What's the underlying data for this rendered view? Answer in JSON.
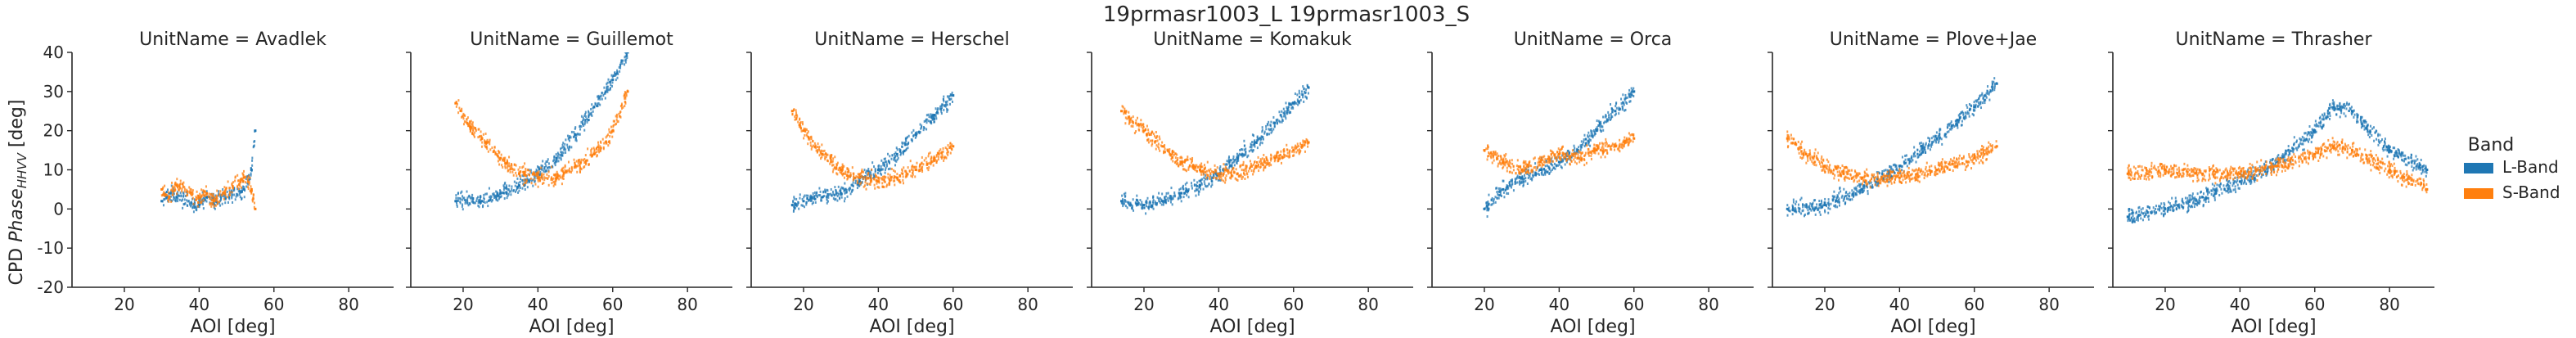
{
  "suptitle": "19prmasr1003_L 19prmasr1003_S",
  "legend": {
    "title": "Band",
    "entries": [
      {
        "label": "L-Band",
        "color": "#1f77b4"
      },
      {
        "label": "S-Band",
        "color": "#ff7f0e"
      }
    ]
  },
  "chart_data": {
    "type": "scatter",
    "title": "19prmasr1003_L 19prmasr1003_S",
    "xlabel": "AOI [deg]",
    "ylabel": "CPD Phase_HHVV [deg]",
    "xlim": [
      6,
      92
    ],
    "ylim": [
      -20,
      40
    ],
    "xticks": [
      20,
      40,
      60,
      80
    ],
    "yticks": [
      -20,
      -10,
      0,
      10,
      20,
      30,
      40
    ],
    "grid": false,
    "legend_position": "right",
    "series_names": [
      "L-Band",
      "S-Band"
    ],
    "panels": [
      {
        "title": "UnitName = Avadlek",
        "series": [
          {
            "name": "L-Band",
            "x": [
              30,
              32,
              34,
              40,
              42,
              44,
              52,
              54,
              55
            ],
            "y": [
              2,
              4,
              3,
              1,
              3,
              2,
              5,
              10,
              20
            ]
          },
          {
            "name": "S-Band",
            "x": [
              30,
              32,
              34,
              40,
              42,
              44,
              52,
              54,
              55
            ],
            "y": [
              5,
              3,
              6,
              3,
              4,
              2,
              8,
              5,
              0
            ]
          }
        ]
      },
      {
        "title": "UnitName = Guillemot",
        "series": [
          {
            "name": "L-Band",
            "x": [
              18,
              25,
              30,
              35,
              40,
              45,
              50,
              55,
              60,
              64
            ],
            "y": [
              2,
              2,
              4,
              6,
              9,
              13,
              19,
              26,
              33,
              40
            ]
          },
          {
            "name": "S-Band",
            "x": [
              18,
              22,
              26,
              30,
              35,
              40,
              45,
              50,
              55,
              60,
              64
            ],
            "y": [
              27,
              21,
              17,
              13,
              9,
              8,
              8,
              11,
              14,
              20,
              30
            ]
          }
        ]
      },
      {
        "title": "UnitName = Herschel",
        "series": [
          {
            "name": "L-Band",
            "x": [
              17,
              20,
              25,
              30,
              35,
              40,
              45,
              50,
              55,
              60
            ],
            "y": [
              1,
              2,
              3,
              4,
              7,
              10,
              14,
              19,
              24,
              29
            ]
          },
          {
            "name": "S-Band",
            "x": [
              17,
              20,
              25,
              30,
              35,
              40,
              45,
              50,
              55,
              60
            ],
            "y": [
              25,
              20,
              14,
              10,
              8,
              7,
              8,
              10,
              13,
              16
            ]
          }
        ]
      },
      {
        "title": "UnitName = Komakuk",
        "series": [
          {
            "name": "L-Band",
            "x": [
              14,
              20,
              25,
              30,
              35,
              40,
              45,
              50,
              55,
              60,
              64
            ],
            "y": [
              2,
              1,
              2,
              4,
              6,
              9,
              13,
              17,
              22,
              27,
              31
            ]
          },
          {
            "name": "S-Band",
            "x": [
              14,
              20,
              25,
              30,
              35,
              40,
              45,
              50,
              55,
              60,
              64
            ],
            "y": [
              25,
              20,
              16,
              12,
              10,
              9,
              9,
              11,
              13,
              15,
              17
            ]
          }
        ]
      },
      {
        "title": "UnitName = Orca",
        "series": [
          {
            "name": "L-Band",
            "x": [
              20,
              25,
              30,
              35,
              40,
              45,
              50,
              55,
              60
            ],
            "y": [
              0,
              5,
              8,
              10,
              12,
              15,
              20,
              25,
              30
            ]
          },
          {
            "name": "S-Band",
            "x": [
              20,
              25,
              30,
              35,
              40,
              45,
              50,
              55,
              60
            ],
            "y": [
              15,
              12,
              10,
              12,
              14,
              13,
              15,
              16,
              18
            ]
          }
        ]
      },
      {
        "title": "UnitName = Plove+Jae",
        "series": [
          {
            "name": "L-Band",
            "x": [
              10,
              20,
              30,
              40,
              50,
              60,
              66
            ],
            "y": [
              0,
              1,
              5,
              11,
              18,
              26,
              32
            ]
          },
          {
            "name": "S-Band",
            "x": [
              10,
              15,
              20,
              25,
              30,
              40,
              50,
              60,
              66
            ],
            "y": [
              18,
              14,
              11,
              9,
              8,
              8,
              10,
              13,
              16
            ]
          }
        ]
      },
      {
        "title": "UnitName = Thrasher",
        "series": [
          {
            "name": "L-Band",
            "x": [
              10,
              20,
              30,
              40,
              50,
              60,
              65,
              70,
              80,
              90
            ],
            "y": [
              -2,
              0,
              3,
              7,
              12,
              20,
              26,
              25,
              15,
              10
            ]
          },
          {
            "name": "S-Band",
            "x": [
              10,
              20,
              30,
              40,
              50,
              60,
              65,
              70,
              80,
              90
            ],
            "y": [
              9,
              10,
              9,
              9,
              11,
              14,
              16,
              15,
              10,
              5
            ]
          }
        ]
      }
    ]
  }
}
